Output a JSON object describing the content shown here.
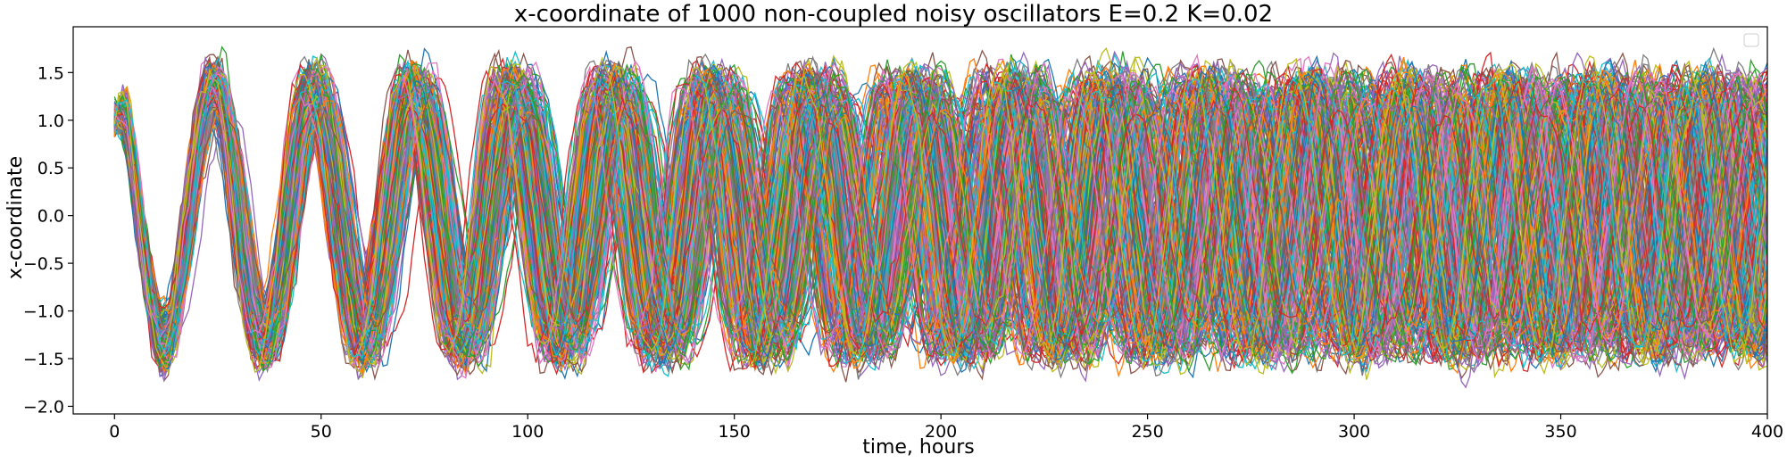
{
  "chart_data": {
    "type": "line",
    "title": "x-coordinate of 1000 non-coupled noisy oscillators E=0.2 K=0.02",
    "xlabel": "time, hours",
    "ylabel": "x-coordinate",
    "xlim": [
      -10,
      400
    ],
    "ylim": [
      -2.08,
      1.98
    ],
    "xticks": [
      0,
      50,
      100,
      150,
      200,
      250,
      300,
      350,
      400
    ],
    "xtick_labels": [
      "0",
      "50",
      "100",
      "150",
      "200",
      "250",
      "300",
      "350",
      "400"
    ],
    "yticks": [
      -2.0,
      -1.5,
      -1.0,
      -0.5,
      0.0,
      0.5,
      1.0,
      1.5
    ],
    "ytick_labels": [
      "−2.0",
      "−1.5",
      "−1.0",
      "−0.5",
      "0.0",
      "0.5",
      "1.0",
      "1.5"
    ],
    "grid": false,
    "legend": {
      "position": "top-right",
      "entries": []
    },
    "series_count": 1000,
    "series_model": {
      "description_of_values": "Noisy oscillators x(t) starting near x=1.0 at t=0 with period about 24 hours; amplitude about 1.2-1.5 and dephasing over time.",
      "t_start": 0,
      "t_end": 400,
      "x_initial": 1.0,
      "period_hours": 24.2,
      "amplitude_range": [
        1.1,
        1.55
      ],
      "x_min_observed": -1.87,
      "x_max_observed": 1.8
    },
    "colors": [
      "#1f77b4",
      "#ff7f0e",
      "#2ca02c",
      "#d62728",
      "#9467bd",
      "#8c564b",
      "#e377c2",
      "#7f7f7f",
      "#bcbd22",
      "#17becf"
    ]
  }
}
